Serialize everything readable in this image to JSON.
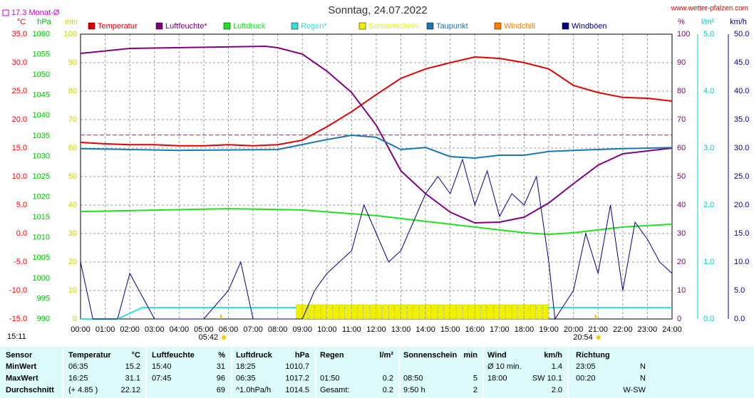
{
  "chart_data": {
    "type": "line",
    "title": "Sonntag, 24.07.2022",
    "site": "www.wetter-pfalzen.com",
    "month_avg": {
      "value": 17.3,
      "label": "17.3 Monat-Ø",
      "color": "#cc00cc"
    },
    "corner_time": "15:11",
    "sun_times": [
      {
        "x": 5.7,
        "label": "05:42"
      },
      {
        "x": 20.9,
        "label": "20:54"
      }
    ],
    "xlim": [
      0,
      24
    ],
    "xticks": [
      {
        "value": 0,
        "label": "00:00"
      },
      {
        "value": 1,
        "label": "01:00"
      },
      {
        "value": 2,
        "label": "02:00"
      },
      {
        "value": 3,
        "label": "03:00"
      },
      {
        "value": 4,
        "label": "04:00"
      },
      {
        "value": 5,
        "label": "05:00"
      },
      {
        "value": 6,
        "label": "06:00"
      },
      {
        "value": 7,
        "label": "07:00"
      },
      {
        "value": 8,
        "label": "08:00"
      },
      {
        "value": 9,
        "label": "09:00"
      },
      {
        "value": 10,
        "label": "10:00"
      },
      {
        "value": 11,
        "label": "11:00"
      },
      {
        "value": 12,
        "label": "12:00"
      },
      {
        "value": 13,
        "label": "13:00"
      },
      {
        "value": 14,
        "label": "14:00"
      },
      {
        "value": 15,
        "label": "15:00"
      },
      {
        "value": 16,
        "label": "16:00"
      },
      {
        "value": 17,
        "label": "17:00"
      },
      {
        "value": 18,
        "label": "18:00"
      },
      {
        "value": 19,
        "label": "19:00"
      },
      {
        "value": 20,
        "label": "20:00"
      },
      {
        "value": 21,
        "label": "21:00"
      },
      {
        "value": 22,
        "label": "22:00"
      },
      {
        "value": 23,
        "label": "23:00"
      },
      {
        "value": 24,
        "label": "24:00"
      }
    ],
    "grid": true,
    "axes": {
      "temp": {
        "label": "°C",
        "color": "#ff0000",
        "side": "left",
        "lim": [
          -15,
          35
        ],
        "ticks": [
          {
            "value": -15,
            "label": "-15.0"
          },
          {
            "value": -10,
            "label": "-10.0"
          },
          {
            "value": -5,
            "label": "-5.0"
          },
          {
            "value": 0,
            "label": "0.0"
          },
          {
            "value": 5,
            "label": "5.0"
          },
          {
            "value": 10,
            "label": "10.0"
          },
          {
            "value": 15,
            "label": "15.0"
          },
          {
            "value": 20,
            "label": "20.0"
          },
          {
            "value": 25,
            "label": "25.0"
          },
          {
            "value": 30,
            "label": "30.0"
          },
          {
            "value": 35,
            "label": "35.0"
          }
        ]
      },
      "hpa": {
        "label": "hPa",
        "color": "#00c000",
        "side": "left",
        "lim": [
          990,
          1060
        ],
        "ticks": [
          990,
          995,
          1000,
          1005,
          1010,
          1015,
          1020,
          1025,
          1030,
          1035,
          1040,
          1045,
          1050,
          1055,
          1060
        ]
      },
      "min": {
        "label": "min",
        "color": "#d0d000",
        "side": "left",
        "lim": [
          0,
          100
        ],
        "ticks": [
          0,
          10,
          20,
          30,
          40,
          50,
          60,
          70,
          80,
          90,
          100
        ]
      },
      "pct": {
        "label": "%",
        "color": "#800080",
        "side": "right",
        "lim": [
          0,
          100
        ],
        "ticks": [
          0,
          10,
          20,
          30,
          40,
          50,
          60,
          70,
          80,
          90,
          100
        ]
      },
      "rain": {
        "label": "l/m²",
        "color": "#00cccc",
        "side": "right",
        "lim": [
          0,
          5
        ],
        "ticks": [
          {
            "value": 0,
            "label": "0.0"
          },
          {
            "value": 1,
            "label": "1.0"
          },
          {
            "value": 2,
            "label": "2.0"
          },
          {
            "value": 3,
            "label": "3.0"
          },
          {
            "value": 4,
            "label": "4.0"
          },
          {
            "value": 5,
            "label": "5.0"
          }
        ]
      },
      "kmh": {
        "label": "km/h",
        "color": "#000080",
        "side": "right",
        "lim": [
          0,
          50
        ],
        "ticks": [
          {
            "value": 0,
            "label": "0.0"
          },
          {
            "value": 5,
            "label": "5.0"
          },
          {
            "value": 10,
            "label": "10.0"
          },
          {
            "value": 15,
            "label": "15.0"
          },
          {
            "value": 20,
            "label": "20.0"
          },
          {
            "value": 25,
            "label": "25.0"
          },
          {
            "value": 30,
            "label": "30.0"
          },
          {
            "value": 35,
            "label": "35.0"
          },
          {
            "value": 40,
            "label": "40.0"
          },
          {
            "value": 45,
            "label": "45.0"
          },
          {
            "value": 50,
            "label": "50.0"
          }
        ]
      }
    },
    "series": [
      {
        "name": "Temperatur",
        "color": "#e00000",
        "axis": "temp",
        "kind": "line",
        "x": [
          0,
          1,
          2,
          3,
          4,
          5,
          6,
          7,
          8,
          9,
          10,
          11,
          12,
          13,
          14,
          15,
          16,
          17,
          18,
          19,
          20,
          21,
          22,
          23,
          24
        ],
        "values": [
          16.0,
          15.75,
          15.6,
          15.6,
          15.4,
          15.4,
          15.6,
          15.4,
          15.6,
          16.4,
          18.75,
          21.4,
          24.4,
          27.25,
          28.9,
          30,
          31,
          30.75,
          30,
          28.9,
          26,
          24.75,
          23.9,
          23.75,
          23.25
        ]
      },
      {
        "name": "Luftfeuchte*",
        "color": "#800080",
        "axis": "pct",
        "kind": "line",
        "x": [
          0,
          2,
          7.5,
          8,
          9,
          10,
          11,
          12,
          13,
          14,
          15,
          16,
          17,
          18,
          19,
          20,
          21,
          22,
          23,
          24
        ],
        "values": [
          93.25,
          95,
          95.75,
          95.25,
          93,
          87,
          79.5,
          68,
          52,
          44,
          37.5,
          33.75,
          34,
          35.75,
          40.75,
          47.5,
          54,
          58,
          59,
          60
        ]
      },
      {
        "name": "Luftdruck",
        "color": "#20e020",
        "axis": "hpa",
        "kind": "line",
        "x": [
          0,
          6,
          9,
          12,
          15,
          18,
          19,
          20,
          22,
          24
        ],
        "values": [
          1016.4,
          1017.1,
          1016.8,
          1015.4,
          1013.3,
          1011.2,
          1010.8,
          1011.2,
          1012.6,
          1013.3
        ]
      },
      {
        "name": "Regen*",
        "color": "#30e0e0",
        "axis": "rain",
        "kind": "line",
        "x": [
          0,
          1.5,
          2.5,
          24
        ],
        "values": [
          0,
          0,
          0.2,
          0.2
        ]
      },
      {
        "name": "Sonnenschein",
        "color": "#f0f000",
        "axis": "min",
        "kind": "bar",
        "x": [
          8.75,
          9,
          9.25,
          9.5,
          9.75,
          10,
          10.25,
          10.5,
          10.75,
          11,
          11.25,
          11.5,
          11.75,
          12,
          12.25,
          12.5,
          12.75,
          13,
          13.25,
          13.5,
          13.75,
          14,
          14.25,
          14.5,
          14.75,
          15,
          15.25,
          15.5,
          15.75,
          16,
          16.25,
          16.5,
          16.75,
          17,
          17.25,
          17.5,
          17.75,
          18,
          18.25,
          18.5,
          18.75
        ],
        "values": [
          5,
          5,
          5,
          5,
          5,
          5,
          5,
          5,
          5,
          5,
          5,
          5,
          5,
          5,
          5,
          5,
          5,
          5,
          5,
          5,
          5,
          5,
          5,
          5,
          5,
          5,
          5,
          5,
          5,
          5,
          5,
          5,
          5,
          5,
          5,
          5,
          5,
          5,
          5,
          5,
          5
        ]
      },
      {
        "name": "Taupunkt",
        "color": "#1878b0",
        "axis": "temp",
        "kind": "line",
        "x": [
          0,
          4,
          8,
          10,
          11,
          12,
          13,
          14,
          15,
          16,
          17,
          18,
          19,
          20,
          22,
          24
        ],
        "values": [
          14.9,
          14.6,
          14.75,
          16.5,
          17.25,
          16.9,
          14.75,
          15.1,
          13.5,
          13.25,
          13.75,
          13.75,
          14.4,
          14.6,
          14.9,
          15.1
        ]
      },
      {
        "name": "Windchill",
        "color": "#ff8000",
        "axis": "temp",
        "kind": "line",
        "x": [],
        "values": []
      },
      {
        "name": "Windböen",
        "color": "#000080",
        "axis": "kmh",
        "kind": "line",
        "x": [
          0,
          0.5,
          1,
          1.5,
          2,
          3,
          4,
          5,
          6,
          6.5,
          7,
          8,
          9,
          9.5,
          10,
          10.5,
          11,
          11.5,
          12,
          12.5,
          13,
          13.5,
          14,
          14.5,
          15,
          15.5,
          16,
          16.5,
          17,
          17.5,
          18,
          18.5,
          19,
          19.25,
          20,
          20.5,
          21,
          21.5,
          22,
          22.5,
          23,
          23.5,
          24
        ],
        "values": [
          10,
          0,
          0,
          0,
          8,
          0,
          0,
          0,
          5,
          10,
          0,
          0,
          0,
          5,
          8,
          10,
          12,
          20,
          15,
          10,
          12,
          17,
          22,
          25,
          22,
          28,
          20,
          26,
          18,
          22,
          20,
          25,
          10,
          0,
          5,
          15,
          8,
          20,
          5,
          17,
          14,
          10,
          8
        ]
      }
    ]
  },
  "table": {
    "header": {
      "sensor": "Sensor",
      "temp_time": "Temperatur",
      "temp": "°C",
      "hum_time": "Luftfeuchte",
      "hum": "%",
      "press_time": "Luftdruck",
      "press": "hPa",
      "rain_time": "Regen",
      "rain": "l/m²",
      "sun_time": "Sonnenschein",
      "sun": "min",
      "wind_time": "Wind",
      "wind": "km/h",
      "dir_time": "Richtung"
    },
    "rows": [
      {
        "sensor": "MinWert",
        "temp_time": "06:35",
        "temp": "15.2",
        "hum_time": "15:40",
        "hum": "31",
        "press_time": "18:25",
        "press": "1010.7",
        "wind_time": "Ø 10 min.",
        "wind": "1.4",
        "dir_time": "23:05",
        "dir": "N"
      },
      {
        "sensor": "MaxWert",
        "temp_time": "16:25",
        "temp": "31.1",
        "hum_time": "07:45",
        "hum": "96",
        "press_time": "06:35",
        "press": "1017.2",
        "rain_time": "01:50",
        "rain": "0.2",
        "sun_time": "08:50",
        "sun": "5",
        "wind_time": "18:00",
        "wind": "SW 10.1",
        "dir_time": "00:20",
        "dir": "N"
      },
      {
        "sensor": "Durchschnitt",
        "temp_time": "(+ 4.85 )",
        "temp": "22.12",
        "hum": "69",
        "press_time": "^1.0hPa/h",
        "press": "1014.5",
        "rain_time": "Gesamt:",
        "rain": "0.2",
        "sun_time": "9:50 h",
        "sun": "2",
        "wind": "2.0",
        "dir": "W-SW"
      }
    ]
  }
}
